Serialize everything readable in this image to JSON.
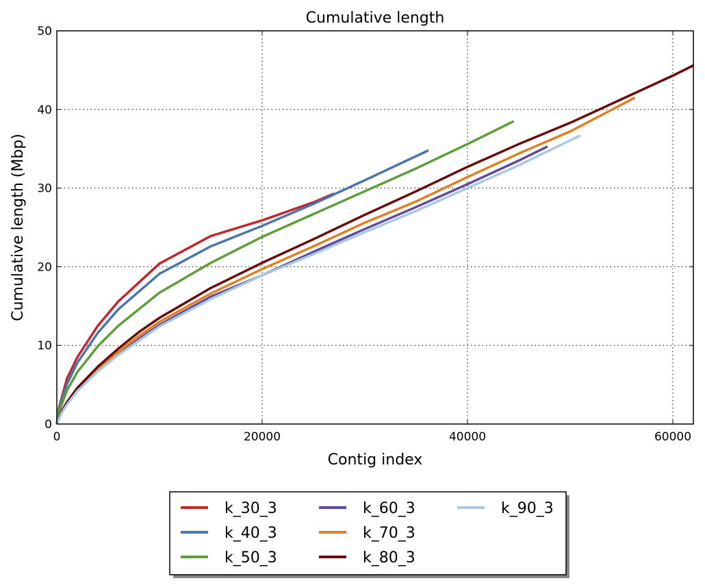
{
  "chart_data": {
    "type": "line",
    "title": "Cumulative length",
    "xlabel": "Contig index",
    "ylabel": "Cumulative length (Mbp)",
    "xlim": [
      0,
      62000
    ],
    "ylim": [
      0,
      50
    ],
    "xticks": [
      0,
      20000,
      40000,
      60000
    ],
    "xtick_labels": [
      "0",
      "20000",
      "40000",
      "60000"
    ],
    "yticks": [
      0,
      10,
      20,
      30,
      40,
      50
    ],
    "ytick_labels": [
      "0",
      "10",
      "20",
      "30",
      "40",
      "50"
    ],
    "grid": true,
    "legend_position": "below",
    "series": [
      {
        "name": "k_30_3",
        "color": "#c1272d",
        "x": [
          0,
          200,
          1000,
          2000,
          4000,
          6000,
          10000,
          15000,
          20000,
          25000,
          27000
        ],
        "y": [
          0,
          2.0,
          5.8,
          8.5,
          12.5,
          15.6,
          20.4,
          23.9,
          25.9,
          28.2,
          29.3
        ]
      },
      {
        "name": "k_40_3",
        "color": "#4a75b1",
        "x": [
          0,
          200,
          1000,
          2000,
          4000,
          6000,
          10000,
          15000,
          20000,
          25000,
          30000,
          36200
        ],
        "y": [
          0,
          1.8,
          5.1,
          7.8,
          11.6,
          14.6,
          19.1,
          22.6,
          25.2,
          28.0,
          31.0,
          34.8
        ]
      },
      {
        "name": "k_50_3",
        "color": "#5c9e3a",
        "x": [
          0,
          200,
          1000,
          2000,
          4000,
          6000,
          10000,
          15000,
          20000,
          25000,
          30000,
          35000,
          40000,
          44500
        ],
        "y": [
          0,
          1.5,
          4.3,
          6.6,
          9.9,
          12.5,
          16.7,
          20.5,
          23.8,
          26.7,
          29.6,
          32.5,
          35.6,
          38.5
        ]
      },
      {
        "name": "k_60_3",
        "color": "#5e4a9e",
        "x": [
          0,
          500,
          1000,
          2000,
          4000,
          6000,
          8000,
          10000,
          15000,
          20000,
          25000,
          30000,
          35000,
          40000,
          45000,
          47800
        ],
        "y": [
          0,
          1.6,
          2.6,
          4.3,
          6.8,
          8.9,
          10.8,
          12.6,
          16.2,
          18.9,
          21.9,
          24.8,
          27.6,
          30.5,
          33.5,
          35.3
        ]
      },
      {
        "name": "k_70_3",
        "color": "#e08022",
        "x": [
          0,
          500,
          1000,
          2000,
          4000,
          6000,
          8000,
          10000,
          15000,
          20000,
          25000,
          30000,
          35000,
          40000,
          45000,
          50000,
          56300
        ],
        "y": [
          0,
          1.6,
          2.7,
          4.4,
          7.0,
          9.2,
          11.2,
          13.0,
          16.6,
          19.7,
          22.6,
          25.6,
          28.3,
          31.4,
          34.4,
          37.2,
          41.5
        ]
      },
      {
        "name": "k_80_3",
        "color": "#6b0a0a",
        "x": [
          0,
          500,
          1000,
          2000,
          4000,
          6000,
          8000,
          10000,
          15000,
          20000,
          25000,
          30000,
          35000,
          40000,
          45000,
          50000,
          55000,
          60000,
          62000
        ],
        "y": [
          0,
          1.7,
          2.8,
          4.6,
          7.3,
          9.6,
          11.7,
          13.5,
          17.3,
          20.5,
          23.5,
          26.6,
          29.6,
          32.7,
          35.6,
          38.3,
          41.3,
          44.3,
          45.6
        ]
      },
      {
        "name": "k_90_3",
        "color": "#a9c9e3",
        "x": [
          0,
          500,
          1000,
          2000,
          4000,
          6000,
          8000,
          10000,
          15000,
          20000,
          25000,
          30000,
          35000,
          40000,
          45000,
          51000
        ],
        "y": [
          0,
          1.5,
          2.5,
          4.2,
          6.7,
          8.8,
          10.6,
          12.4,
          15.9,
          18.9,
          21.6,
          24.4,
          27.1,
          30.0,
          32.9,
          36.7
        ]
      }
    ]
  }
}
